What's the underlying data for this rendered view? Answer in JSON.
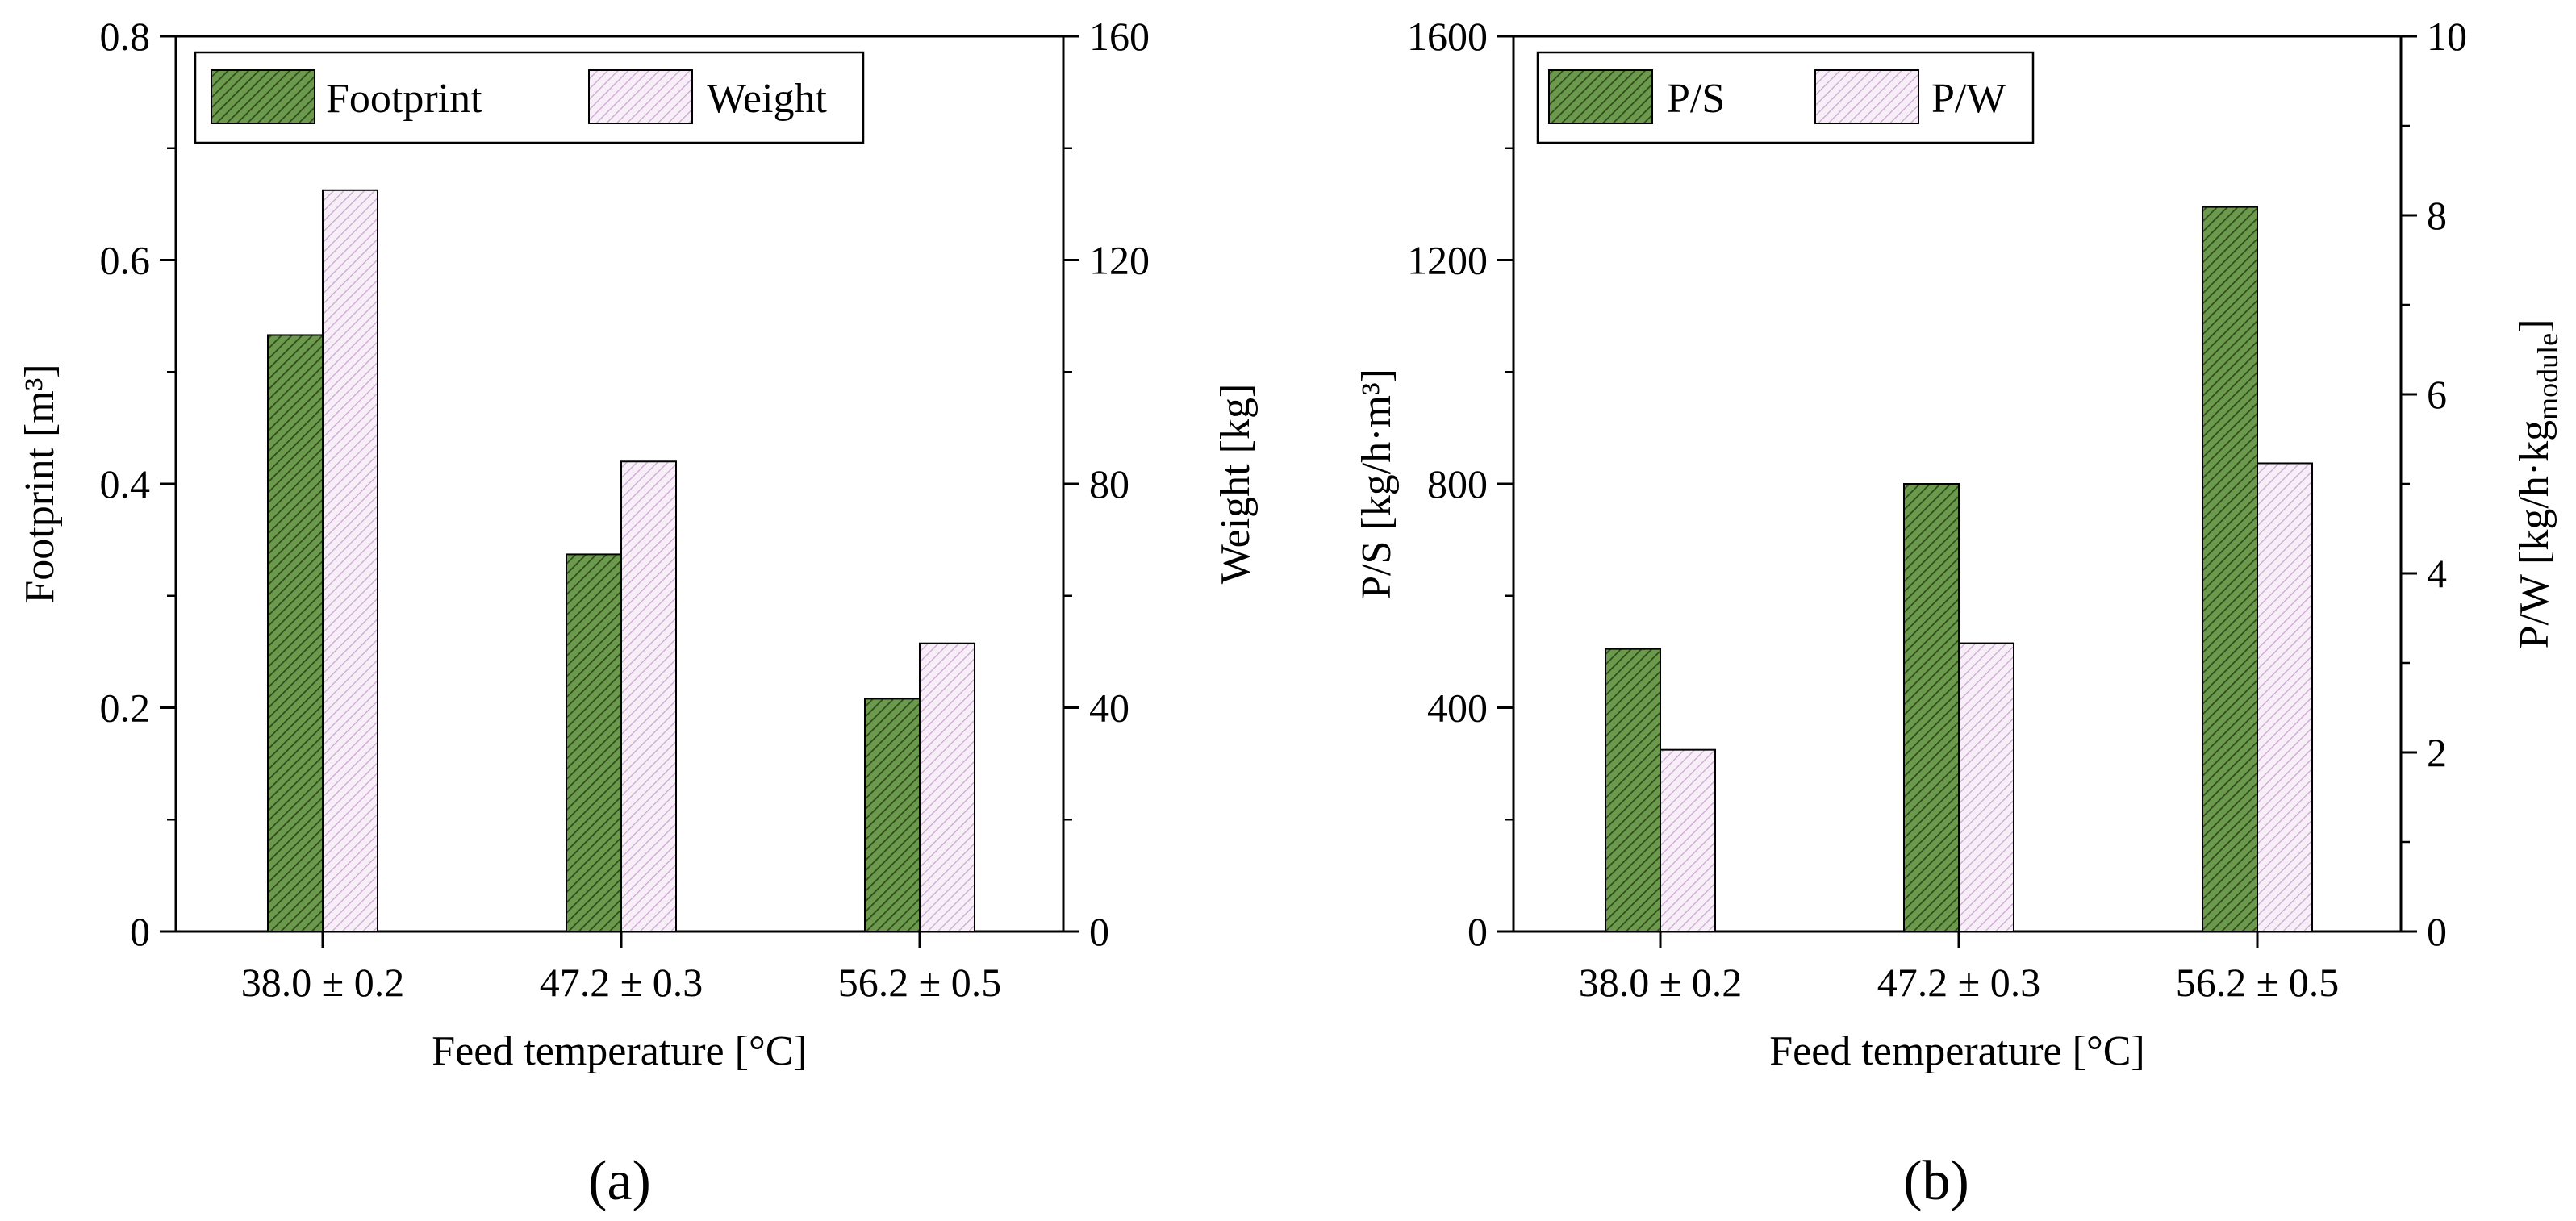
{
  "chart_data": [
    {
      "type": "bar",
      "panel_label": "(a)",
      "categories": [
        "38.0 ± 0.2",
        "47.2 ± 0.3",
        "56.2 ± 0.5"
      ],
      "xlabel": "Feed temperature [°C]",
      "series": [
        {
          "name": "Footprint",
          "axis": "left",
          "values": [
            0.533,
            0.337,
            0.208
          ],
          "color": "#6b9a4c",
          "hatch_color": "#2f4a1e"
        },
        {
          "name": "Weight",
          "axis": "right",
          "values": [
            132.5,
            84,
            51.5
          ],
          "color": "#f7eef8",
          "hatch_color": "#c9a5cf"
        }
      ],
      "ylabel_left": "Footprint [m³]",
      "ylim_left": [
        0,
        0.8
      ],
      "yticks_left": [
        "0",
        "0.2",
        "0.4",
        "0.6",
        "0.8"
      ],
      "ylabel_right": "Weight [kg]",
      "ylim_right": [
        0,
        160
      ],
      "yticks_right": [
        "0",
        "40",
        "80",
        "120",
        "160"
      ],
      "legend_position": "top-left"
    },
    {
      "type": "bar",
      "panel_label": "(b)",
      "categories": [
        "38.0 ± 0.2",
        "47.2 ± 0.3",
        "56.2 ± 0.5"
      ],
      "xlabel": "Feed temperature [°C]",
      "series": [
        {
          "name": "P/S",
          "axis": "left",
          "values": [
            505,
            800,
            1295
          ],
          "color": "#6b9a4c",
          "hatch_color": "#2f4a1e"
        },
        {
          "name": "P/W",
          "axis": "right",
          "values": [
            2.03,
            3.22,
            5.23
          ],
          "color": "#f7eef8",
          "hatch_color": "#c9a5cf"
        }
      ],
      "ylabel_left": "P/S [kg/h·m³]",
      "ylim_left": [
        0,
        1600
      ],
      "yticks_left": [
        "0",
        "400",
        "800",
        "1200",
        "1600"
      ],
      "ylabel_right_main": "P/W [kg/h·kg",
      "ylabel_right_sub": "module",
      "ylabel_right_end": "]",
      "ylim_right": [
        0,
        10
      ],
      "yticks_right": [
        "0",
        "2",
        "4",
        "6",
        "8",
        "10"
      ],
      "legend_position": "top-left"
    }
  ]
}
